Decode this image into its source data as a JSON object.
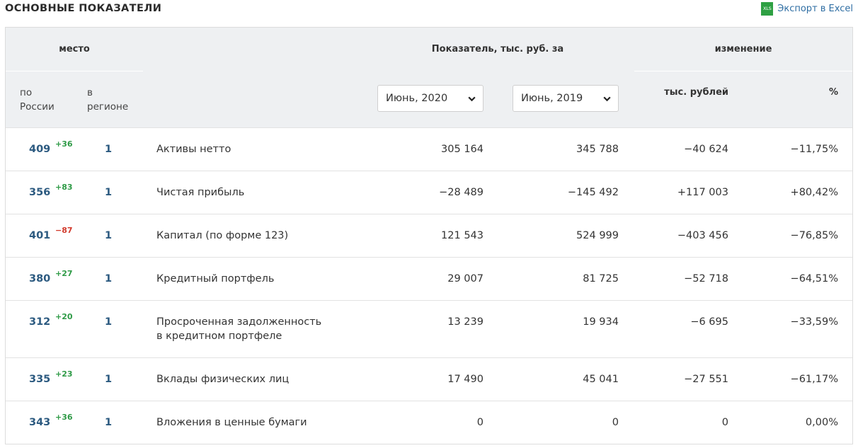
{
  "page": {
    "title": "ОСНОВНЫЕ ПОКАЗАТЕЛИ"
  },
  "export": {
    "icon_text": "XLS",
    "label": "Экспорт в Excel"
  },
  "table": {
    "groups": {
      "place": "место",
      "indicator": "Показатель, тыс. руб. за",
      "change": "изменение"
    },
    "sub": {
      "russia": "по России",
      "region": "в регионе",
      "change_abs": "тыс. рублей",
      "change_pct": "%"
    },
    "selects": {
      "period1": "Июнь, 2020",
      "period2": "Июнь, 2019"
    },
    "rows": [
      {
        "rank": "409",
        "rank_delta": "+36",
        "region_rank": "1",
        "name": "Активы нетто",
        "v1": "305 164",
        "v2": "345 788",
        "change": "−40 624",
        "pct": "−11,75%"
      },
      {
        "rank": "356",
        "rank_delta": "+83",
        "region_rank": "1",
        "name": "Чистая прибыль",
        "v1": "−28 489",
        "v2": "−145 492",
        "change": "+117 003",
        "pct": "+80,42%"
      },
      {
        "rank": "401",
        "rank_delta": "−87",
        "region_rank": "1",
        "name": "Капитал (по форме 123)",
        "v1": "121 543",
        "v2": "524 999",
        "change": "−403 456",
        "pct": "−76,85%"
      },
      {
        "rank": "380",
        "rank_delta": "+27",
        "region_rank": "1",
        "name": "Кредитный портфель",
        "v1": "29 007",
        "v2": "81 725",
        "change": "−52 718",
        "pct": "−64,51%"
      },
      {
        "rank": "312",
        "rank_delta": "+20",
        "region_rank": "1",
        "name": "Просроченная задолженность в кредитном портфеле",
        "v1": "13 239",
        "v2": "19 934",
        "change": "−6 695",
        "pct": "−33,59%"
      },
      {
        "rank": "335",
        "rank_delta": "+23",
        "region_rank": "1",
        "name": "Вклады физических лиц",
        "v1": "17 490",
        "v2": "45 041",
        "change": "−27 551",
        "pct": "−61,17%"
      },
      {
        "rank": "343",
        "rank_delta": "+36",
        "region_rank": "1",
        "name": "Вложения в ценные бумаги",
        "v1": "0",
        "v2": "0",
        "change": "0",
        "pct": "0,00%"
      }
    ]
  },
  "colors": {
    "positive": "#2e9a46",
    "negative": "#d23a2c",
    "rank": "#2c5a80",
    "header_bg": "#eef0f2",
    "link": "#2f6ea3"
  }
}
